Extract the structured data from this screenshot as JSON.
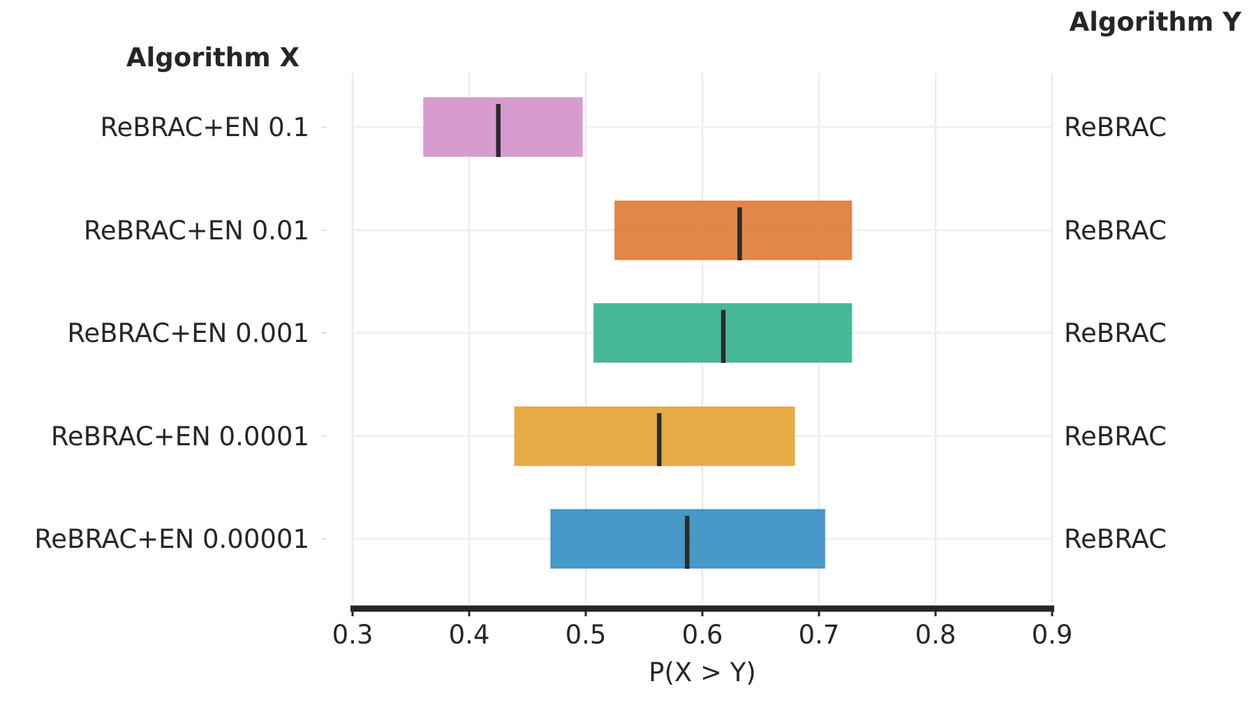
{
  "chart_data": {
    "type": "interval",
    "left_header": "Algorithm X",
    "right_header": "Algorithm Y",
    "xlabel": "P(X > Y)",
    "xlim": [
      0.3,
      0.9
    ],
    "xticks": [
      "0.3",
      "0.4",
      "0.5",
      "0.6",
      "0.7",
      "0.8",
      "0.9"
    ],
    "rows": [
      {
        "algorithm_x": "ReBRAC+EN 0.1",
        "algorithm_y": "ReBRAC",
        "low": 0.361,
        "high": 0.497,
        "median": 0.425,
        "color": "#d28dc8"
      },
      {
        "algorithm_x": "ReBRAC+EN 0.01",
        "algorithm_y": "ReBRAC",
        "low": 0.525,
        "high": 0.728,
        "median": 0.632,
        "color": "#de7530"
      },
      {
        "algorithm_x": "ReBRAC+EN 0.001",
        "algorithm_y": "ReBRAC",
        "low": 0.507,
        "high": 0.728,
        "median": 0.618,
        "color": "#2cae8a"
      },
      {
        "algorithm_x": "ReBRAC+EN 0.0001",
        "algorithm_y": "ReBRAC",
        "low": 0.439,
        "high": 0.679,
        "median": 0.563,
        "color": "#e2a12c"
      },
      {
        "algorithm_x": "ReBRAC+EN 0.00001",
        "algorithm_y": "ReBRAC",
        "low": 0.47,
        "high": 0.705,
        "median": 0.587,
        "color": "#2d8bc0"
      }
    ]
  }
}
